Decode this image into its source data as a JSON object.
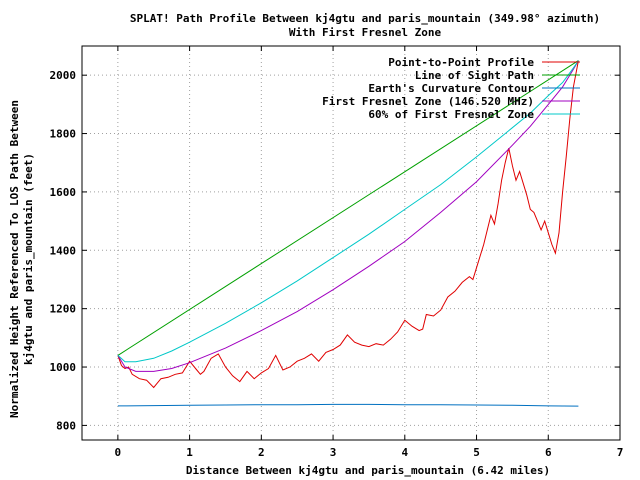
{
  "chart_data": {
    "type": "line",
    "title": "SPLAT! Path Profile Between kj4gtu and paris_mountain (349.98° azimuth)",
    "subtitle": "With First Fresnel Zone",
    "xlabel": "Distance Between kj4gtu and paris_mountain (6.42 miles)",
    "ylabel_lines": [
      "Normalized Height Referenced To LOS Path Between",
      "kj4gtu and paris_mountain (feet)"
    ],
    "xlim": [
      -0.5,
      7
    ],
    "ylim": [
      750,
      2100
    ],
    "x_ticks": [
      0,
      1,
      2,
      3,
      4,
      5,
      6,
      7
    ],
    "y_ticks": [
      800,
      1000,
      1200,
      1400,
      1600,
      1800,
      2000
    ],
    "x_tick_labels": [
      "0",
      "1",
      "2",
      "3",
      "4",
      "5",
      "6",
      "7"
    ],
    "y_tick_labels": [
      "800",
      "1000",
      "1200",
      "1400",
      "1600",
      "1800",
      "2000"
    ],
    "grid": true,
    "legend_position": "top-right",
    "series": [
      {
        "name": "Point-to-Point Profile",
        "color": "#e00000",
        "x": [
          0,
          0.05,
          0.1,
          0.15,
          0.2,
          0.3,
          0.4,
          0.5,
          0.55,
          0.6,
          0.7,
          0.8,
          0.9,
          1.0,
          1.1,
          1.15,
          1.2,
          1.3,
          1.4,
          1.5,
          1.55,
          1.6,
          1.7,
          1.8,
          1.9,
          2.0,
          2.1,
          2.2,
          2.3,
          2.4,
          2.5,
          2.6,
          2.7,
          2.8,
          2.9,
          3.0,
          3.1,
          3.2,
          3.3,
          3.4,
          3.5,
          3.6,
          3.7,
          3.8,
          3.9,
          4.0,
          4.1,
          4.2,
          4.25,
          4.3,
          4.4,
          4.5,
          4.6,
          4.7,
          4.8,
          4.9,
          4.95,
          5.0,
          5.05,
          5.1,
          5.15,
          5.2,
          5.25,
          5.3,
          5.35,
          5.4,
          5.45,
          5.5,
          5.55,
          5.6,
          5.7,
          5.75,
          5.8,
          5.85,
          5.9,
          5.95,
          6.0,
          6.05,
          6.1,
          6.15,
          6.2,
          6.25,
          6.3,
          6.35,
          6.42
        ],
        "y": [
          1040,
          1005,
          995,
          1000,
          975,
          960,
          955,
          930,
          945,
          960,
          965,
          975,
          980,
          1020,
          990,
          975,
          985,
          1030,
          1045,
          1000,
          985,
          970,
          950,
          985,
          960,
          980,
          995,
          1040,
          990,
          1000,
          1020,
          1030,
          1045,
          1020,
          1050,
          1060,
          1075,
          1110,
          1085,
          1075,
          1070,
          1080,
          1075,
          1095,
          1120,
          1160,
          1140,
          1125,
          1130,
          1180,
          1175,
          1195,
          1240,
          1260,
          1290,
          1310,
          1300,
          1340,
          1380,
          1420,
          1470,
          1520,
          1490,
          1560,
          1640,
          1700,
          1750,
          1690,
          1640,
          1670,
          1590,
          1540,
          1530,
          1500,
          1470,
          1500,
          1460,
          1420,
          1390,
          1460,
          1600,
          1720,
          1850,
          1960,
          2050
        ]
      },
      {
        "name": "Line of Sight Path",
        "color": "#00a000",
        "x": [
          0,
          6.42
        ],
        "y": [
          1040,
          2050
        ]
      },
      {
        "name": "Earth's Curvature Contour",
        "color": "#0070c0",
        "x": [
          0,
          0.5,
          1,
          1.5,
          2,
          2.5,
          3,
          3.5,
          4,
          4.5,
          5,
          5.5,
          6,
          6.42
        ],
        "y": [
          867,
          868,
          869,
          870,
          871,
          871,
          872,
          872,
          871,
          871,
          870,
          869,
          867,
          866
        ]
      },
      {
        "name": "First Fresnel Zone (146.520 MHz)",
        "color": "#a000c0",
        "x": [
          0,
          0.1,
          0.25,
          0.5,
          0.75,
          1,
          1.5,
          2,
          2.5,
          3,
          3.5,
          4,
          4.5,
          5,
          5.5,
          5.75,
          6,
          6.2,
          6.35,
          6.42
        ],
        "y": [
          1040,
          1000,
          985,
          985,
          995,
          1015,
          1065,
          1125,
          1190,
          1265,
          1345,
          1430,
          1530,
          1635,
          1760,
          1825,
          1900,
          1960,
          2020,
          2050
        ]
      },
      {
        "name": "60% of First Fresnel Zone",
        "color": "#00c8c8",
        "x": [
          0,
          0.1,
          0.25,
          0.5,
          0.75,
          1,
          1.5,
          2,
          2.5,
          3,
          3.5,
          4,
          4.5,
          5,
          5.5,
          5.75,
          6,
          6.2,
          6.35,
          6.42
        ],
        "y": [
          1040,
          1018,
          1018,
          1030,
          1055,
          1085,
          1150,
          1220,
          1295,
          1375,
          1455,
          1540,
          1625,
          1720,
          1820,
          1870,
          1930,
          1975,
          2025,
          2050
        ]
      }
    ]
  }
}
